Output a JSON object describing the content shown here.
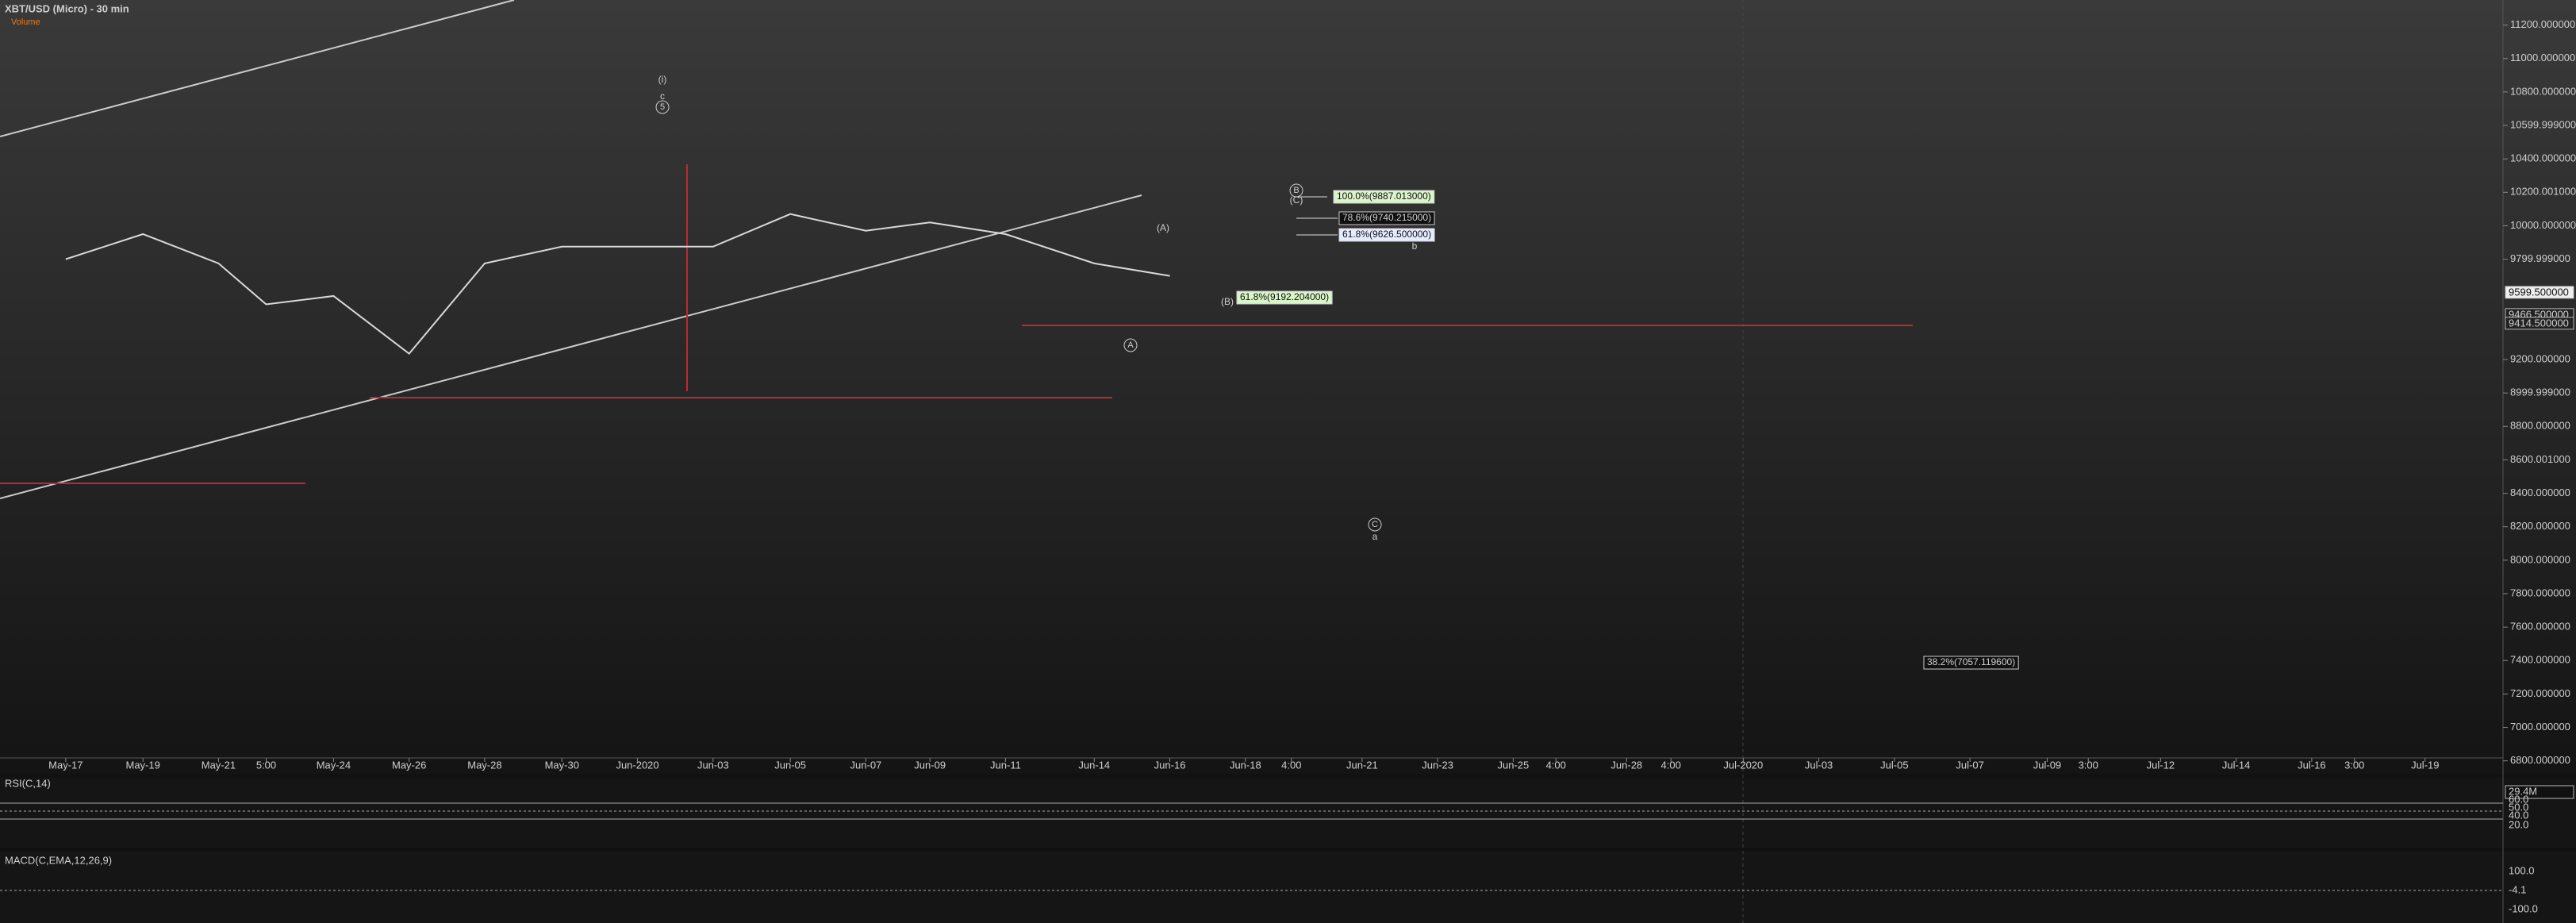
{
  "chart_data": {
    "type": "line",
    "title": "XBT/USD (Micro) - 30 min",
    "subtitle": "Volume",
    "volume_label": "29.4M",
    "categories": [
      "May-17",
      "May-19",
      "May-21",
      "5:00",
      "May-24",
      "May-26",
      "May-28",
      "May-30",
      "Jun-2020",
      "Jun-03",
      "Jun-05",
      "Jun-07",
      "Jun-09",
      "Jun-11",
      "Jun-14",
      "Jun-16",
      "Jun-18",
      "4:00",
      "Jun-21",
      "Jun-23",
      "Jun-25",
      "4:00",
      "Jun-28",
      "4:00",
      "Jul-2020",
      "Jul-03",
      "Jul-05",
      "Jul-07",
      "Jul-09",
      "3:00",
      "Jul-12",
      "Jul-14",
      "Jul-16",
      "3:00",
      "Jul-19"
    ],
    "series": [
      {
        "name": "XBT/USD",
        "color": "#d9d9d9",
        "values": [
          9800,
          9950,
          9775,
          9530,
          9580,
          9235,
          9775,
          9875,
          9875,
          9875,
          10070,
          9970,
          10020,
          9950,
          9775,
          9700,
          null,
          null,
          null,
          null,
          null,
          null,
          null,
          null,
          null,
          null,
          null,
          null,
          null,
          null,
          null,
          null,
          null,
          null,
          null
        ]
      }
    ],
    "ylim": [
      6680,
      11350
    ],
    "yticks": [
      {
        "value": 11200,
        "label": "11200.000000"
      },
      {
        "value": 11000,
        "label": "11000.000000"
      },
      {
        "value": 10800,
        "label": "10800.000000"
      },
      {
        "value": 10599.999,
        "label": "10599.999000"
      },
      {
        "value": 10400,
        "label": "10400.000000"
      },
      {
        "value": 10200.001,
        "label": "10200.001000"
      },
      {
        "value": 10000,
        "label": "10000.000000"
      },
      {
        "value": 9799.999,
        "label": "9799.999000"
      },
      {
        "value": 9200,
        "label": "9200.000000"
      },
      {
        "value": 8999.999,
        "label": "8999.999000"
      },
      {
        "value": 8800,
        "label": "8800.000000"
      },
      {
        "value": 8600.001,
        "label": "8600.001000"
      },
      {
        "value": 8400,
        "label": "8400.000000"
      },
      {
        "value": 8200,
        "label": "8200.000000"
      },
      {
        "value": 8000,
        "label": "8000.000000"
      },
      {
        "value": 7800,
        "label": "7800.000000"
      },
      {
        "value": 7600,
        "label": "7600.000000"
      },
      {
        "value": 7400,
        "label": "7400.000000"
      },
      {
        "value": 7200,
        "label": "7200.000000"
      },
      {
        "value": 7000,
        "label": "7000.000000"
      },
      {
        "value": 6800,
        "label": "6800.000000"
      }
    ],
    "price_labels": [
      {
        "value": 9599.5,
        "label": "9599.500000"
      },
      {
        "value": 9466.5,
        "label": "9466.500000"
      },
      {
        "value": 9414.5,
        "label": "9414.500000"
      }
    ],
    "annotations": [
      "(i)",
      "c",
      "5",
      "(A)",
      "A",
      "(B)",
      "B",
      "(C)",
      "C",
      "a",
      "b",
      "100.0%(9887.013000)",
      "78.6%(9740.215000)",
      "61.8%(9626.500000)",
      "61.8%(9192.204000)",
      "38.2%(7057.119600)"
    ],
    "rsi": {
      "title": "RSI(C,14)",
      "ticks": [
        "60.0",
        "50.0",
        "40.0",
        "20.0"
      ]
    },
    "macd": {
      "title": "MACD(C,EMA,12,26,9)",
      "ticks": [
        "100.0",
        "-4.1",
        "-100.0"
      ]
    }
  }
}
